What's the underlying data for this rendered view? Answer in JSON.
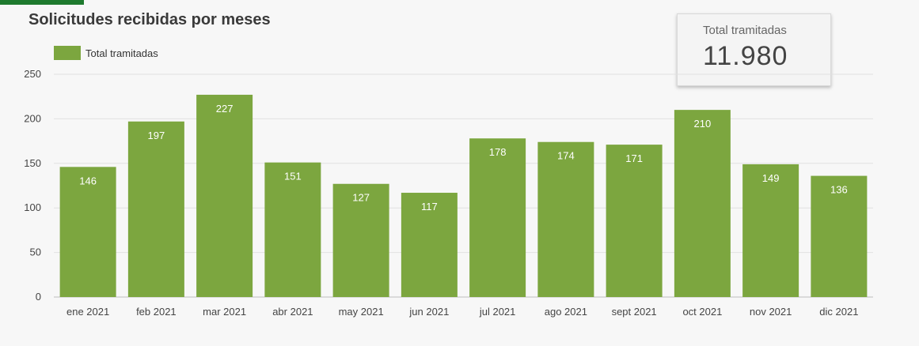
{
  "header": {
    "title": "Solicitudes recibidas por meses"
  },
  "kpi": {
    "label": "Total tramitadas",
    "value": "11.980"
  },
  "colors": {
    "bar": "#7ca63f",
    "accent": "#1e7a2e",
    "grid": "#e1e1e1"
  },
  "chart_data": {
    "type": "bar",
    "categories": [
      "ene 2021",
      "feb 2021",
      "mar 2021",
      "abr 2021",
      "may 2021",
      "jun 2021",
      "jul 2021",
      "ago 2021",
      "sept 2021",
      "oct 2021",
      "nov 2021",
      "dic 2021"
    ],
    "series": [
      {
        "name": "Total tramitadas",
        "values": [
          146,
          197,
          227,
          151,
          127,
          117,
          178,
          174,
          171,
          210,
          149,
          136
        ]
      }
    ],
    "yticks": [
      "0",
      "50",
      "100",
      "150",
      "200",
      "250"
    ],
    "ylim": [
      0,
      250
    ],
    "grid": true,
    "legend": "top-left",
    "data_labels": true
  }
}
